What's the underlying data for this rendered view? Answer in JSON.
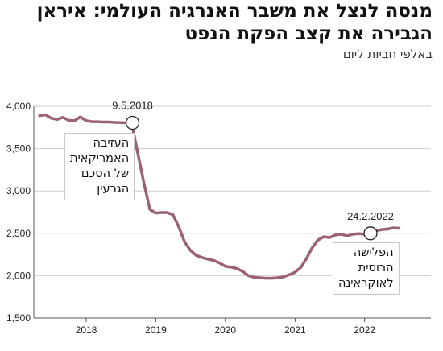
{
  "title_lines": [
    "מנסה לנצל את משבר האנרגיה העולמי: איראן",
    "הגבירה את קצב הפקת הנפט"
  ],
  "subtitle": "באלפי חביות ליום",
  "colors": {
    "line": "#9b6177",
    "grid": "#cfcfcf",
    "axis": "#555555",
    "marker_fill": "#ffffff",
    "marker_stroke": "#222222"
  },
  "chart_data": {
    "type": "line",
    "title": "מנסה לנצל את משבר האנרגיה העולמי: איראן הגבירה את קצב הפקת הנפט",
    "ylabel": "באלפי חביות ליום",
    "xlabel": "",
    "ylim": [
      1500,
      4000
    ],
    "xlim": [
      "2017-04-01",
      "2022-12-15"
    ],
    "y_ticks": [
      1500,
      2000,
      2500,
      3000,
      3500,
      4000
    ],
    "y_tick_labels": [
      "1,500",
      "2,000",
      "2,500",
      "3,000",
      "3,500",
      "4,000"
    ],
    "x_ticks": [
      "2018-01-01",
      "2019-01-01",
      "2020-01-01",
      "2021-01-01",
      "2022-01-01"
    ],
    "x_tick_labels": [
      "2018",
      "2019",
      "2020",
      "2021",
      "2022"
    ],
    "grid": "horizontal",
    "series": [
      {
        "points": [
          [
            "2017-05-01",
            3890
          ],
          [
            "2017-06-01",
            3900
          ],
          [
            "2017-07-01",
            3860
          ],
          [
            "2017-08-01",
            3845
          ],
          [
            "2017-09-01",
            3870
          ],
          [
            "2017-10-01",
            3835
          ],
          [
            "2017-11-01",
            3830
          ],
          [
            "2017-12-01",
            3875
          ],
          [
            "2018-01-01",
            3830
          ],
          [
            "2018-02-01",
            3818
          ],
          [
            "2018-03-01",
            3818
          ],
          [
            "2018-04-01",
            3815
          ],
          [
            "2018-05-01",
            3815
          ],
          [
            "2018-06-01",
            3810
          ],
          [
            "2018-07-01",
            3808
          ],
          [
            "2018-08-01",
            3805
          ],
          [
            "2018-09-01",
            3750
          ],
          [
            "2018-10-01",
            3420
          ],
          [
            "2018-11-01",
            3080
          ],
          [
            "2018-12-01",
            2780
          ],
          [
            "2019-01-01",
            2740
          ],
          [
            "2019-02-01",
            2745
          ],
          [
            "2019-03-01",
            2745
          ],
          [
            "2019-04-01",
            2720
          ],
          [
            "2019-05-01",
            2580
          ],
          [
            "2019-06-01",
            2400
          ],
          [
            "2019-07-01",
            2300
          ],
          [
            "2019-08-01",
            2240
          ],
          [
            "2019-09-01",
            2215
          ],
          [
            "2019-10-01",
            2195
          ],
          [
            "2019-11-01",
            2180
          ],
          [
            "2019-12-01",
            2150
          ],
          [
            "2020-01-01",
            2110
          ],
          [
            "2020-02-01",
            2100
          ],
          [
            "2020-03-01",
            2085
          ],
          [
            "2020-04-01",
            2050
          ],
          [
            "2020-05-01",
            2000
          ],
          [
            "2020-06-01",
            1980
          ],
          [
            "2020-07-01",
            1975
          ],
          [
            "2020-08-01",
            1970
          ],
          [
            "2020-09-01",
            1970
          ],
          [
            "2020-10-01",
            1975
          ],
          [
            "2020-11-01",
            1985
          ],
          [
            "2020-12-01",
            2010
          ],
          [
            "2021-01-01",
            2040
          ],
          [
            "2021-02-01",
            2100
          ],
          [
            "2021-03-01",
            2200
          ],
          [
            "2021-04-01",
            2330
          ],
          [
            "2021-05-01",
            2420
          ],
          [
            "2021-06-01",
            2460
          ],
          [
            "2021-07-01",
            2450
          ],
          [
            "2021-08-01",
            2480
          ],
          [
            "2021-09-01",
            2490
          ],
          [
            "2021-10-01",
            2470
          ],
          [
            "2021-11-01",
            2490
          ],
          [
            "2021-12-01",
            2495
          ],
          [
            "2022-01-01",
            2490
          ],
          [
            "2022-02-01",
            2500
          ],
          [
            "2022-03-01",
            2530
          ],
          [
            "2022-04-01",
            2545
          ],
          [
            "2022-05-01",
            2550
          ],
          [
            "2022-06-01",
            2565
          ],
          [
            "2022-07-01",
            2560
          ]
        ]
      }
    ],
    "annotations": [
      {
        "date_label": "9.5.2018",
        "x": "2018-09-01",
        "y": 3805,
        "label_side": "above",
        "note_lines": [
          "העזיבה",
          "האמריקאית",
          "של הסכם",
          "הגרעין"
        ],
        "note_anchor": "below-left"
      },
      {
        "date_label": "24.2.2022",
        "x": "2022-02-01",
        "y": 2500,
        "label_side": "above",
        "note_lines": [
          "הפלישה",
          "הרוסית",
          "לאוקראינה"
        ],
        "note_anchor": "below"
      }
    ]
  }
}
